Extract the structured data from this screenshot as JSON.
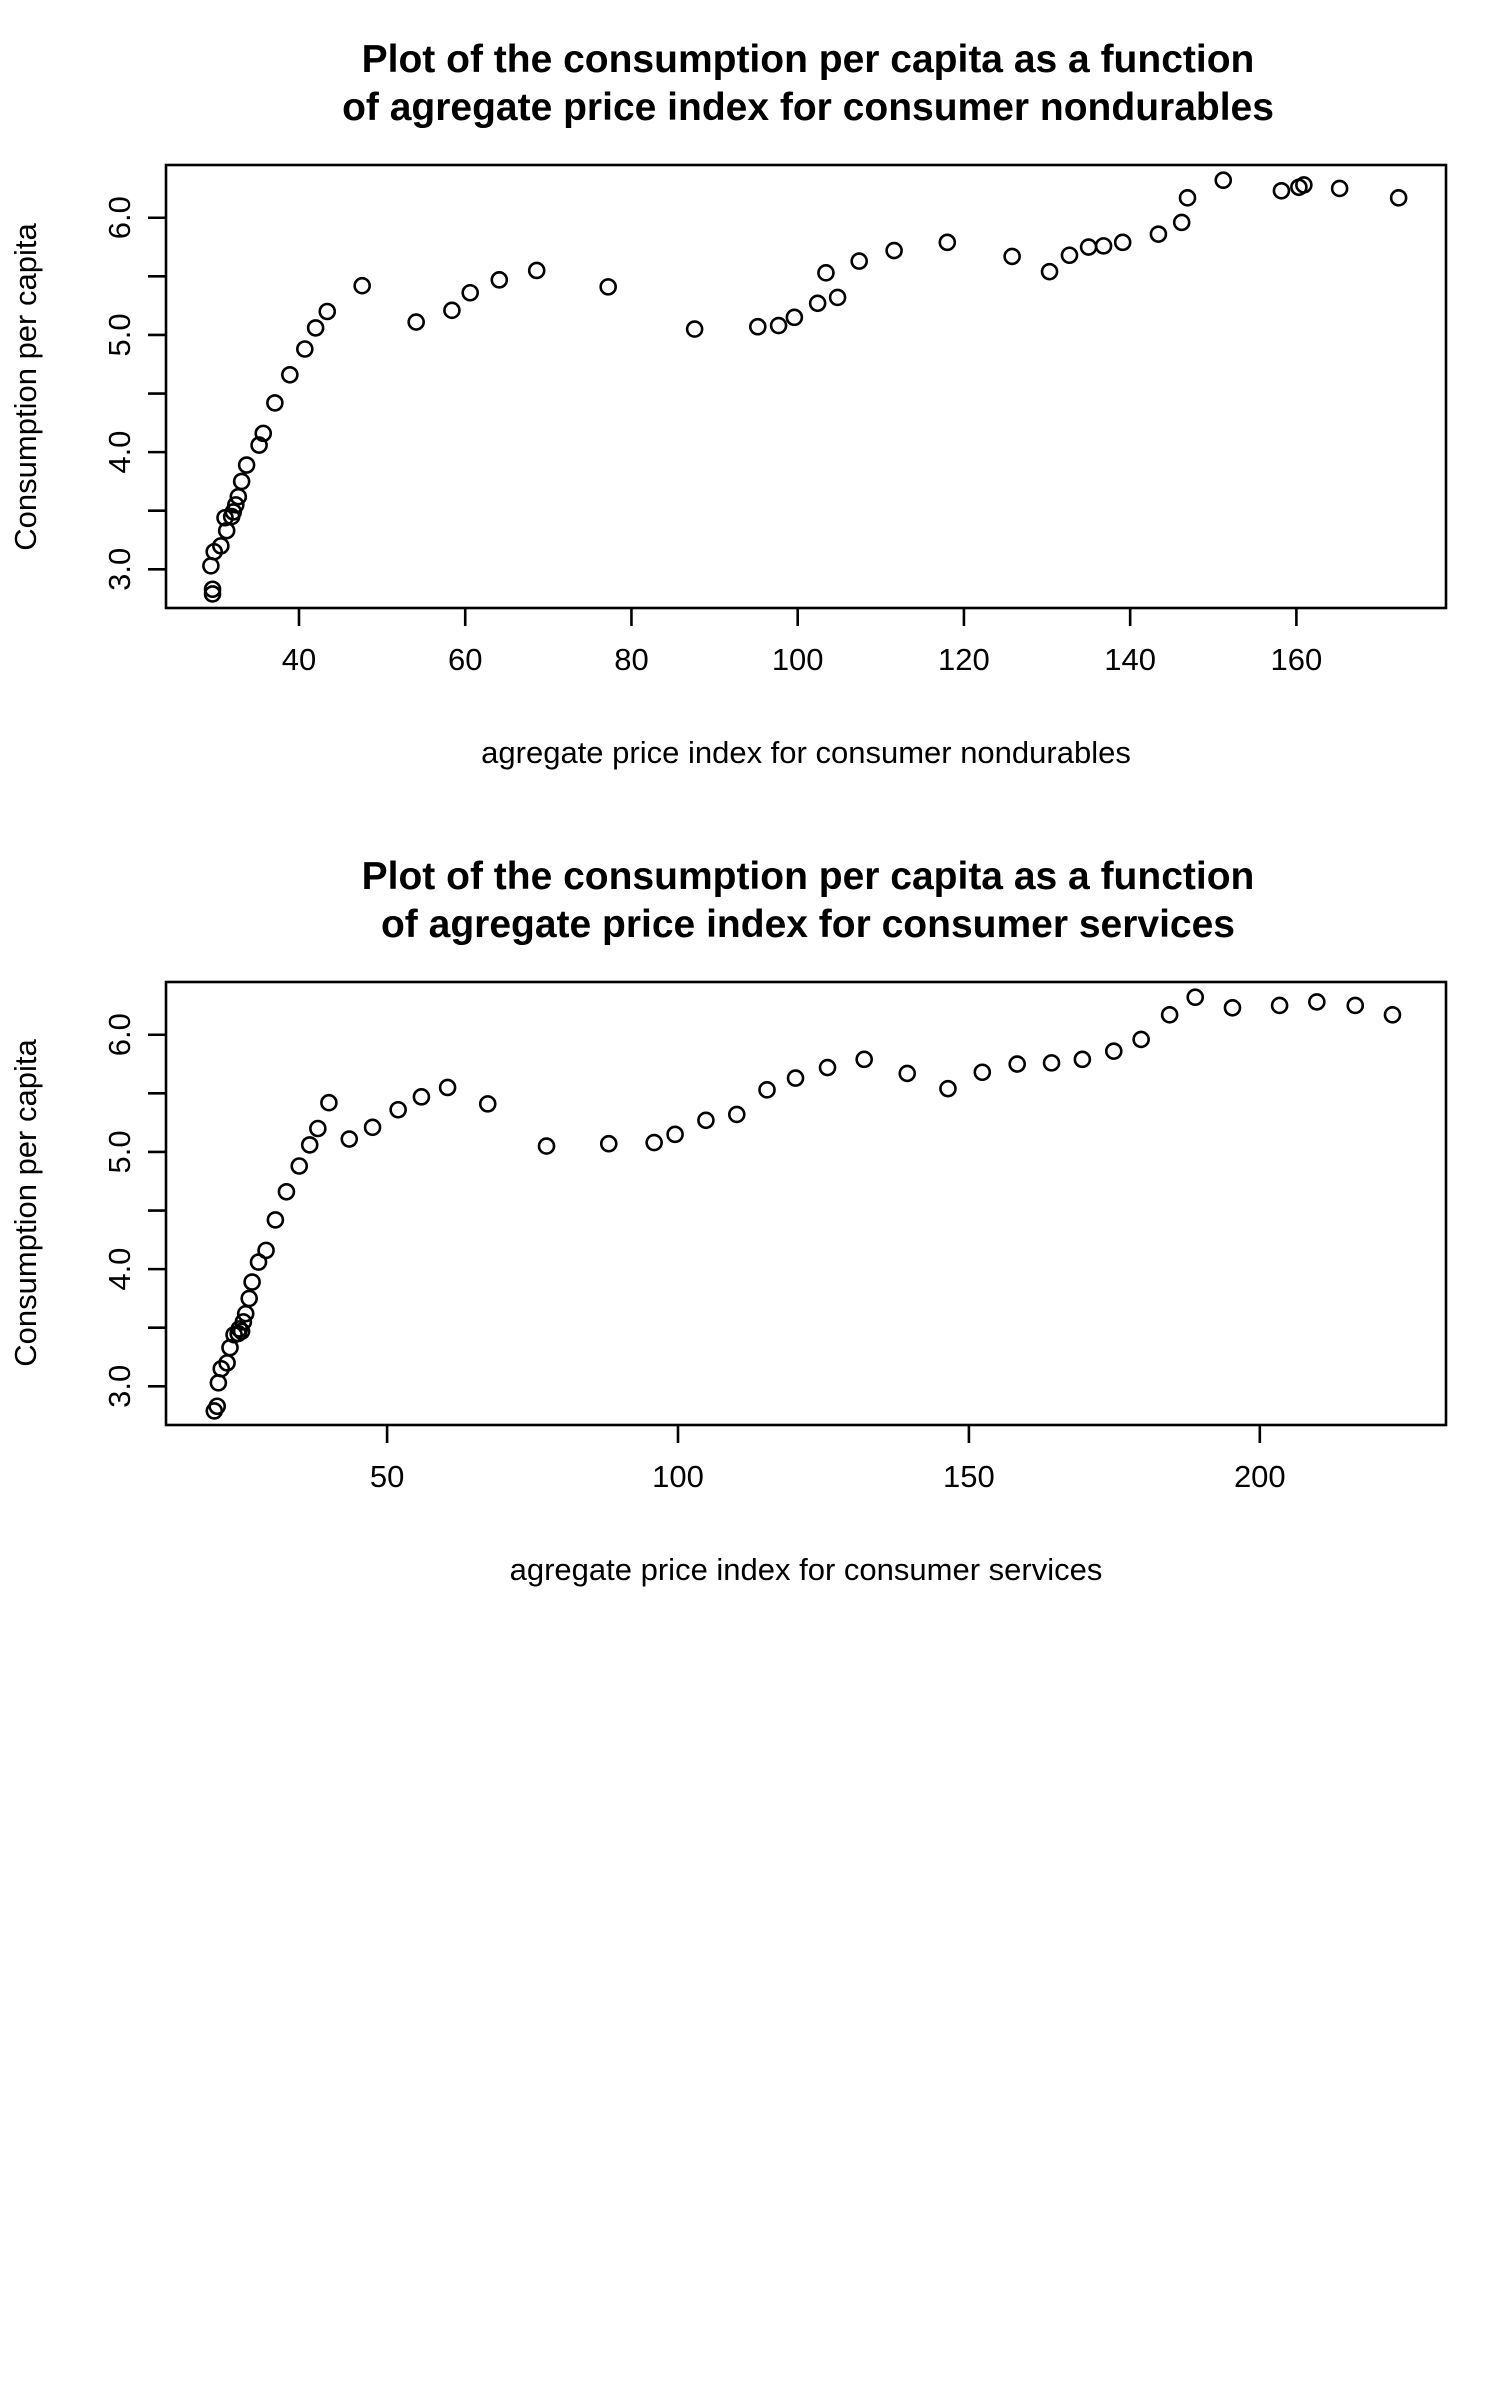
{
  "chart_data": [
    {
      "type": "scatter",
      "title_lines": [
        "Plot of the consumption per capita as a function",
        "of agregate price index for consumer nondurables"
      ],
      "xlabel": "agregate price index for consumer nondurables",
      "ylabel": "Consumption per capita",
      "xlim": [
        24,
        178
      ],
      "ylim": [
        2.67,
        6.45
      ],
      "x_ticks": [
        40,
        60,
        80,
        100,
        120,
        140,
        160
      ],
      "x_tick_labels": [
        "40",
        "60",
        "80",
        "100",
        "120",
        "140",
        "160"
      ],
      "y_ticks": [
        3.0,
        3.5,
        4.0,
        4.5,
        5.0,
        5.5,
        6.0
      ],
      "y_tick_labels": [
        "3.0",
        "",
        "4.0",
        "",
        "5.0",
        "",
        "6.0"
      ],
      "grid": false,
      "points": [
        [
          29.6,
          2.79
        ],
        [
          29.6,
          2.83
        ],
        [
          29.4,
          3.03
        ],
        [
          29.8,
          3.15
        ],
        [
          30.6,
          3.2
        ],
        [
          31.3,
          3.33
        ],
        [
          31.1,
          3.44
        ],
        [
          31.9,
          3.45
        ],
        [
          32.1,
          3.49
        ],
        [
          32.4,
          3.55
        ],
        [
          32.7,
          3.62
        ],
        [
          33.1,
          3.75
        ],
        [
          33.7,
          3.89
        ],
        [
          35.2,
          4.06
        ],
        [
          35.7,
          4.16
        ],
        [
          37.1,
          4.42
        ],
        [
          38.9,
          4.66
        ],
        [
          40.7,
          4.88
        ],
        [
          42.0,
          5.06
        ],
        [
          43.4,
          5.2
        ],
        [
          47.6,
          5.42
        ],
        [
          54.1,
          5.11
        ],
        [
          58.4,
          5.21
        ],
        [
          60.6,
          5.36
        ],
        [
          64.1,
          5.47
        ],
        [
          68.6,
          5.55
        ],
        [
          77.2,
          5.41
        ],
        [
          87.6,
          5.05
        ],
        [
          95.2,
          5.07
        ],
        [
          97.7,
          5.08
        ],
        [
          99.6,
          5.15
        ],
        [
          102.4,
          5.27
        ],
        [
          103.4,
          5.53
        ],
        [
          104.8,
          5.32
        ],
        [
          107.4,
          5.63
        ],
        [
          111.6,
          5.72
        ],
        [
          118.0,
          5.79
        ],
        [
          125.8,
          5.67
        ],
        [
          130.3,
          5.54
        ],
        [
          132.7,
          5.68
        ],
        [
          135.0,
          5.75
        ],
        [
          136.8,
          5.76
        ],
        [
          139.1,
          5.79
        ],
        [
          143.4,
          5.86
        ],
        [
          146.2,
          5.96
        ],
        [
          146.9,
          6.17
        ],
        [
          151.2,
          6.32
        ],
        [
          158.2,
          6.23
        ],
        [
          160.3,
          6.26
        ],
        [
          160.9,
          6.28
        ],
        [
          165.2,
          6.25
        ],
        [
          172.3,
          6.17
        ]
      ]
    },
    {
      "type": "scatter",
      "title_lines": [
        "Plot of the consumption per capita as a function",
        "of agregate price index for consumer services"
      ],
      "xlabel": "agregate price index for consumer services",
      "ylabel": "Consumption per capita",
      "xlim": [
        12,
        232
      ],
      "ylim": [
        2.67,
        6.45
      ],
      "x_ticks": [
        50,
        100,
        150,
        200
      ],
      "x_tick_labels": [
        "50",
        "100",
        "150",
        "200"
      ],
      "y_ticks": [
        3.0,
        3.5,
        4.0,
        4.5,
        5.0,
        5.5,
        6.0
      ],
      "y_tick_labels": [
        "3.0",
        "",
        "4.0",
        "",
        "5.0",
        "",
        "6.0"
      ],
      "grid": false,
      "points": [
        [
          20.3,
          2.79
        ],
        [
          20.8,
          2.83
        ],
        [
          21.0,
          3.03
        ],
        [
          21.5,
          3.15
        ],
        [
          22.5,
          3.2
        ],
        [
          23.0,
          3.33
        ],
        [
          23.7,
          3.44
        ],
        [
          24.4,
          3.45
        ],
        [
          25.0,
          3.47
        ],
        [
          24.6,
          3.49
        ],
        [
          25.3,
          3.55
        ],
        [
          25.7,
          3.62
        ],
        [
          26.3,
          3.75
        ],
        [
          26.8,
          3.89
        ],
        [
          27.9,
          4.06
        ],
        [
          29.2,
          4.16
        ],
        [
          30.8,
          4.42
        ],
        [
          32.7,
          4.66
        ],
        [
          34.9,
          4.88
        ],
        [
          36.7,
          5.06
        ],
        [
          38.1,
          5.2
        ],
        [
          40.0,
          5.42
        ],
        [
          43.5,
          5.11
        ],
        [
          47.5,
          5.21
        ],
        [
          51.9,
          5.36
        ],
        [
          55.9,
          5.47
        ],
        [
          60.4,
          5.55
        ],
        [
          67.3,
          5.41
        ],
        [
          77.4,
          5.05
        ],
        [
          88.1,
          5.07
        ],
        [
          95.9,
          5.08
        ],
        [
          99.5,
          5.15
        ],
        [
          104.8,
          5.27
        ],
        [
          110.1,
          5.32
        ],
        [
          115.3,
          5.53
        ],
        [
          120.2,
          5.63
        ],
        [
          125.7,
          5.72
        ],
        [
          132.0,
          5.79
        ],
        [
          139.4,
          5.67
        ],
        [
          146.4,
          5.54
        ],
        [
          152.3,
          5.68
        ],
        [
          158.3,
          5.75
        ],
        [
          164.2,
          5.76
        ],
        [
          169.5,
          5.79
        ],
        [
          174.9,
          5.86
        ],
        [
          179.6,
          5.96
        ],
        [
          184.5,
          6.17
        ],
        [
          188.9,
          6.32
        ],
        [
          195.3,
          6.23
        ],
        [
          203.4,
          6.25
        ],
        [
          209.8,
          6.28
        ],
        [
          216.4,
          6.25
        ],
        [
          222.8,
          6.17
        ]
      ]
    }
  ]
}
